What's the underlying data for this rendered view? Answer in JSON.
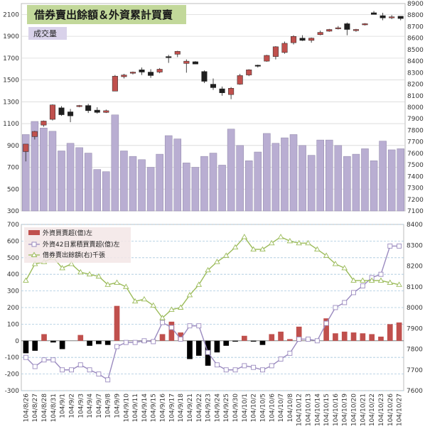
{
  "chart_data": [
    {
      "type": "candlestick",
      "title": "借券賣出餘額＆外資累計買賣",
      "volume_label": "成交量",
      "colors": {
        "up": "#c0504d",
        "down": "#1f1f1f",
        "volume": "#b9aed2",
        "title_bg": "#c2d89a",
        "volume_label_bg": "#d9d2ea"
      },
      "y_left": {
        "min": 300,
        "max": 2200,
        "ticks": [
          300,
          500,
          700,
          900,
          1100,
          1300,
          1500,
          1700,
          1900,
          2100
        ]
      },
      "y_right": {
        "min": 7100,
        "max": 8900,
        "ticks": [
          7100,
          7200,
          7300,
          7400,
          7500,
          7600,
          7700,
          7800,
          7900,
          8000,
          8100,
          8200,
          8300,
          8400,
          8500,
          8600,
          8700,
          8800,
          8900
        ]
      },
      "volume": [
        1000,
        1120,
        1060,
        1030,
        850,
        920,
        880,
        830,
        680,
        660,
        1180,
        850,
        800,
        770,
        700,
        820,
        990,
        960,
        740,
        700,
        800,
        830,
        720,
        1050,
        900,
        760,
        840,
        1010,
        920,
        970,
        1000,
        900,
        810,
        950,
        950,
        900,
        800,
        820,
        870,
        760,
        940,
        860,
        870
      ],
      "ohlc": [
        [
          7615,
          7680,
          7530,
          7680
        ],
        [
          7745,
          7795,
          7720,
          7790
        ],
        [
          7845,
          7885,
          7830,
          7880
        ],
        [
          7895,
          8025,
          7885,
          8020
        ],
        [
          7995,
          8010,
          7925,
          7935
        ],
        [
          7960,
          7985,
          7870,
          7925
        ],
        [
          8010,
          8020,
          8000,
          8015
        ],
        [
          8015,
          8030,
          7950,
          7970
        ],
        [
          7975,
          8000,
          7945,
          7955
        ],
        [
          7955,
          7980,
          7950,
          7970
        ],
        [
          8140,
          8280,
          8150,
          8270
        ],
        [
          8265,
          8290,
          8250,
          8280
        ],
        [
          8295,
          8310,
          8285,
          8305
        ],
        [
          8325,
          8345,
          8280,
          8305
        ],
        [
          8305,
          8330,
          8255,
          8275
        ],
        [
          8305,
          8340,
          8295,
          8330
        ],
        [
          8440,
          8455,
          8385,
          8435
        ],
        [
          8460,
          8490,
          8435,
          8485
        ],
        [
          8380,
          8415,
          8300,
          8400
        ],
        [
          8395,
          8400,
          8375,
          8375
        ],
        [
          8310,
          8320,
          8210,
          8225
        ],
        [
          8200,
          8250,
          8150,
          8170
        ],
        [
          8160,
          8180,
          8100,
          8125
        ],
        [
          8110,
          8175,
          8070,
          8165
        ],
        [
          8200,
          8290,
          8195,
          8275
        ],
        [
          8280,
          8330,
          8270,
          8325
        ],
        [
          8365,
          8370,
          8345,
          8360
        ],
        [
          8400,
          8455,
          8395,
          8450
        ],
        [
          8440,
          8530,
          8415,
          8525
        ],
        [
          8475,
          8570,
          8465,
          8555
        ],
        [
          8560,
          8625,
          8545,
          8615
        ],
        [
          8600,
          8625,
          8575,
          8580
        ],
        [
          8580,
          8605,
          8560,
          8600
        ],
        [
          8630,
          8665,
          8625,
          8650
        ],
        [
          8660,
          8680,
          8655,
          8675
        ],
        [
          8685,
          8705,
          8675,
          8690
        ],
        [
          8725,
          8735,
          8625,
          8675
        ],
        [
          8665,
          8680,
          8655,
          8675
        ],
        [
          8715,
          8730,
          8710,
          8725
        ],
        [
          8820,
          8835,
          8805,
          8805
        ],
        [
          8795,
          8820,
          8755,
          8775
        ],
        [
          8780,
          8800,
          8765,
          8785
        ],
        [
          8790,
          8790,
          8755,
          8770
        ]
      ]
    },
    {
      "type": "bar+line",
      "legend": [
        "外資買賣超(億)左",
        "外資42日累積買賣超(億)左",
        "借券賣出餘額(右)千張"
      ],
      "colors": {
        "bars": "#c0504d",
        "neg_bars": "#000000",
        "line42": "#9a8abf",
        "line_short": "#9bbb59"
      },
      "y_left": {
        "min": -300,
        "max": 700,
        "ticks": [
          -300,
          -200,
          -100,
          0,
          100,
          200,
          300,
          400,
          500,
          600,
          700
        ]
      },
      "y_right": {
        "min": 7600,
        "max": 8400,
        "ticks": [
          7600,
          7700,
          7800,
          7900,
          8000,
          8100,
          8200,
          8300,
          8400
        ]
      },
      "categories": [
        "104/8/26",
        "104/8/27",
        "104/8/28",
        "104/8/31",
        "104/9/1",
        "104/9/2",
        "104/9/3",
        "104/9/4",
        "104/9/7",
        "104/9/8",
        "104/9/9",
        "104/9/10",
        "104/9/11",
        "104/9/14",
        "104/9/15",
        "104/9/16",
        "104/9/17",
        "104/9/18",
        "104/9/21",
        "104/9/22",
        "104/9/23",
        "104/9/24",
        "104/9/25",
        "104/9/30",
        "104/10/1",
        "104/10/2",
        "104/10/5",
        "104/10/6",
        "104/10/7",
        "104/10/8",
        "104/10/12",
        "104/10/13",
        "104/10/14",
        "104/10/15",
        "104/10/16",
        "104/10/19",
        "104/10/20",
        "104/10/21",
        "104/10/22",
        "104/10/23",
        "104/10/26",
        "104/10/27"
      ],
      "bars": [
        -75,
        -60,
        40,
        -10,
        -50,
        0,
        35,
        -30,
        -20,
        -25,
        210,
        0,
        0,
        -10,
        5,
        40,
        115,
        50,
        -110,
        -90,
        -150,
        -70,
        -30,
        -5,
        30,
        -5,
        -25,
        40,
        55,
        10,
        85,
        0,
        0,
        135,
        45,
        55,
        50,
        45,
        40,
        25,
        100,
        110
      ],
      "line_42": [
        -100,
        -155,
        -115,
        -115,
        -175,
        -175,
        -145,
        -175,
        -200,
        -235,
        -35,
        -10,
        -10,
        0,
        -5,
        110,
        80,
        10,
        90,
        90,
        -70,
        -145,
        -175,
        -175,
        -150,
        -160,
        -175,
        -150,
        -110,
        -75,
        10,
        10,
        0,
        105,
        200,
        230,
        290,
        330,
        380,
        400,
        570,
        570
      ],
      "line_short": [
        8130,
        8210,
        8220,
        8240,
        8190,
        8210,
        8170,
        8160,
        8150,
        8110,
        8120,
        8100,
        8030,
        8040,
        8010,
        7950,
        7990,
        8000,
        8060,
        8110,
        8180,
        8220,
        8250,
        8290,
        8340,
        8280,
        8280,
        8310,
        8340,
        8320,
        8310,
        8310,
        8280,
        8250,
        8210,
        8190,
        8130,
        8130,
        8130,
        8130,
        8120,
        8110
      ]
    }
  ]
}
